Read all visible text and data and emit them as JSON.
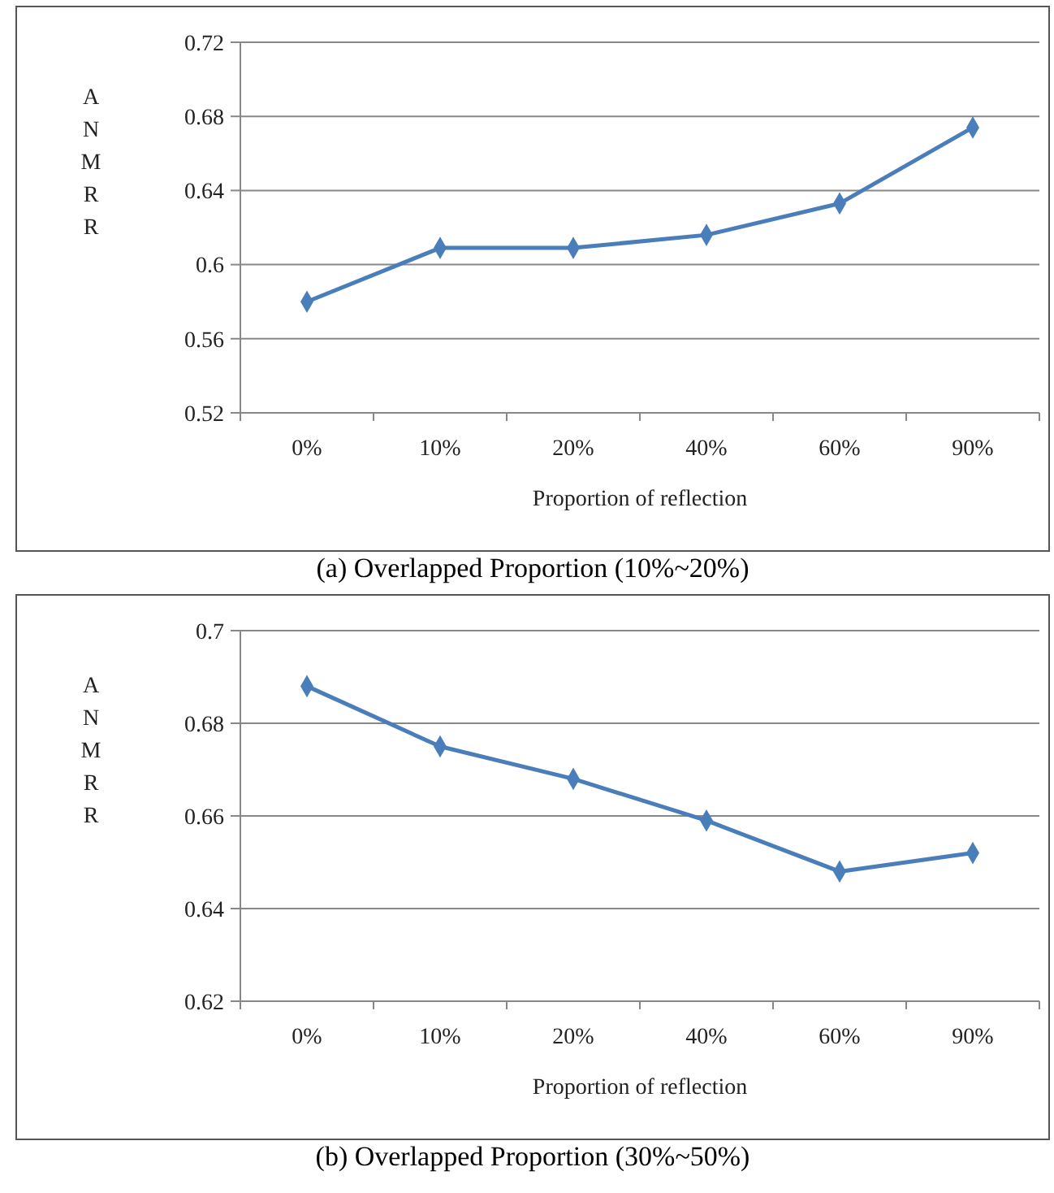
{
  "chart_data": [
    {
      "type": "line",
      "title": "(a) Overlapped Proportion (10%~20%)",
      "xlabel": "Proportion of reflection",
      "ylabel": "ANMRR",
      "categories": [
        "0%",
        "10%",
        "20%",
        "40%",
        "60%",
        "90%"
      ],
      "series": [
        {
          "color": "#4a7ebb",
          "values": [
            0.58,
            0.609,
            0.609,
            0.616,
            0.633,
            0.674
          ]
        }
      ],
      "ylim": [
        0.52,
        0.72
      ],
      "yticks": [
        0.52,
        0.56,
        0.6,
        0.64,
        0.68,
        0.72
      ],
      "grid": "y",
      "marker": "diamond"
    },
    {
      "type": "line",
      "title": "(b) Overlapped Proportion (30%~50%)",
      "xlabel": "Proportion of reflection",
      "ylabel": "ANMRR",
      "categories": [
        "0%",
        "10%",
        "20%",
        "40%",
        "60%",
        "90%"
      ],
      "series": [
        {
          "color": "#4a7ebb",
          "values": [
            0.688,
            0.675,
            0.668,
            0.659,
            0.648,
            0.652
          ]
        }
      ],
      "ylim": [
        0.62,
        0.7
      ],
      "yticks": [
        0.62,
        0.64,
        0.66,
        0.68,
        0.7
      ],
      "grid": "y",
      "marker": "diamond"
    }
  ]
}
